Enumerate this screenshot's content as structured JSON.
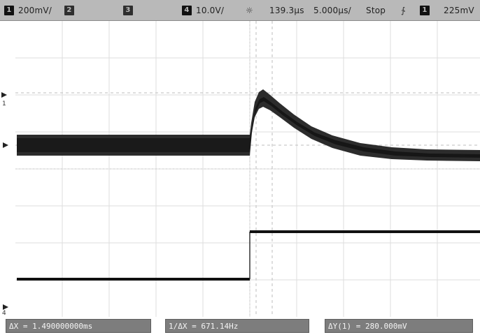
{
  "status_bar": {
    "ch1": {
      "badge": "1",
      "scale": "200mV/"
    },
    "ch2": {
      "badge": "2"
    },
    "ch3": {
      "badge": "3"
    },
    "ch4": {
      "badge": "4",
      "scale": "10.0V/"
    },
    "delay_icon": "sun-icon",
    "delay": "139.3µs",
    "timebase": "5.000µs/",
    "run_state": "Stop",
    "trigger_slope_icon": "trigger-edge-icon",
    "trigger": {
      "badge": "1",
      "level": "225mV"
    }
  },
  "markers": {
    "ch1_ref": "1",
    "ch4_ref": "4"
  },
  "measurements": {
    "delta_x": "ΔX = 1.490000000ms",
    "inv_delta_x": "1/ΔX = 671.14Hz",
    "delta_y": "ΔY(1) = 280.000mV"
  },
  "colors": {
    "status_bar_bg": "#b9b9b9",
    "trace": "#1a1a1a",
    "grid": "#d7d7d7",
    "measurement_bg": "#7d7d7d"
  }
}
